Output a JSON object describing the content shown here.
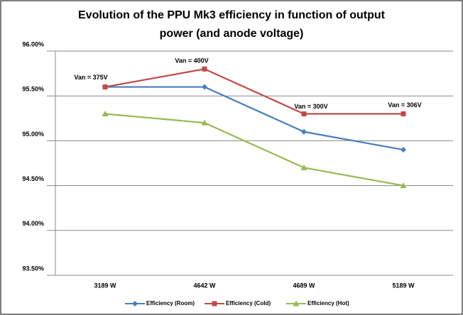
{
  "chart_data": {
    "type": "line",
    "title": [
      "Evolution of the PPU Mk3 efficiency in function of output",
      "power (and anode voltage)"
    ],
    "categories": [
      "3189 W",
      "4642 W",
      "4689 W",
      "5189 W"
    ],
    "series": [
      {
        "name": "Efficiency (Room)",
        "color": "#4a7ebb",
        "marker": "diamond",
        "values": [
          95.6,
          95.6,
          95.1,
          94.9
        ]
      },
      {
        "name": "Efficiency (Cold)",
        "color": "#be4b48",
        "marker": "square",
        "values": [
          95.6,
          95.8,
          95.3,
          95.3
        ]
      },
      {
        "name": "Efficiency (Hot)",
        "color": "#98b954",
        "marker": "triangle",
        "values": [
          95.3,
          95.2,
          94.7,
          94.5
        ]
      }
    ],
    "annotations": [
      "Van = 375V",
      "Van = 400V",
      "Van = 300V",
      "Van = 306V"
    ],
    "ylim": [
      93.5,
      96
    ],
    "yticks": [
      {
        "value": 93.5,
        "label": "93.50%"
      },
      {
        "value": 94,
        "label": "94.00%"
      },
      {
        "value": 94.5,
        "label": "94.50%"
      },
      {
        "value": 95,
        "label": "95.00%"
      },
      {
        "value": 95.5,
        "label": "95.50%"
      },
      {
        "value": 96,
        "label": "96.00%"
      }
    ],
    "grid": true,
    "legend": "bottom"
  }
}
